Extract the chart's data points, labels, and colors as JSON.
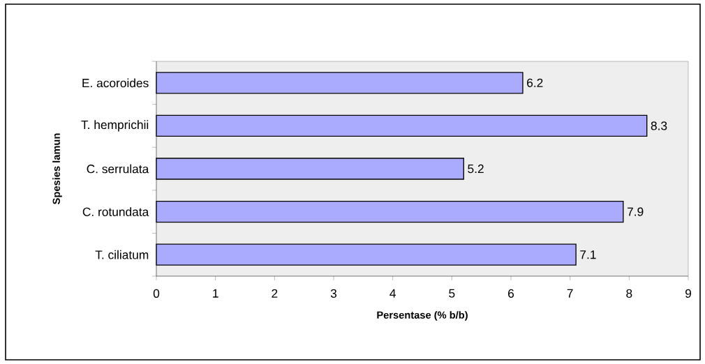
{
  "chart_data": {
    "type": "bar",
    "orientation": "horizontal",
    "xlabel": "Persentase (% b/b)",
    "ylabel": "Spesies lamun",
    "categories": [
      "E. acoroides",
      "T. hemprichii",
      "C. serrulata",
      "C. rotundata",
      "T. ciliatum"
    ],
    "values": [
      6.2,
      8.3,
      5.2,
      7.9,
      7.1
    ],
    "color": "#aaaaff",
    "xlim": [
      0,
      9
    ],
    "xticks": [
      0,
      1,
      2,
      3,
      4,
      5,
      6,
      7,
      8,
      9
    ],
    "data_labels": true,
    "grid": false
  }
}
